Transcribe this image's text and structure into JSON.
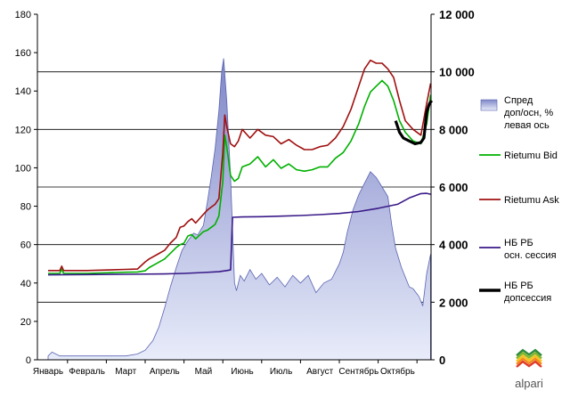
{
  "chart_data": {
    "type": "line",
    "categories": [
      "Январь",
      "Февраль",
      "Март",
      "Апрель",
      "Май",
      "Июнь",
      "Июль",
      "Август",
      "Сентябрь",
      "Октябрь"
    ],
    "left_axis": {
      "ylim": [
        0,
        180
      ],
      "ticks": [
        "0",
        "20",
        "40",
        "60",
        "80",
        "100",
        "120",
        "140",
        "160",
        "180"
      ]
    },
    "right_axis": {
      "ylim": [
        0,
        12000
      ],
      "ticks": [
        "0",
        "2 000",
        "4 000",
        "6 000",
        "8 000",
        "10 000",
        "12 000"
      ]
    },
    "grid": {
      "horizontal_at_right_values": [
        2000,
        4000,
        6000,
        8000,
        10000
      ]
    },
    "series": [
      {
        "name": "Спред доп/осн, % левая ось",
        "axis": "left",
        "style": "area",
        "color": "#9aa3dc",
        "x": [
          0,
          0.1,
          0.3,
          0.5,
          0.8,
          1,
          1.5,
          2,
          2.3,
          2.5,
          2.7,
          2.85,
          3,
          3.15,
          3.3,
          3.45,
          3.6,
          3.75,
          3.85,
          4,
          4.1,
          4.2,
          4.3,
          4.4,
          4.47,
          4.52,
          4.6,
          4.7,
          4.8,
          4.85,
          4.95,
          5.05,
          5.2,
          5.35,
          5.5,
          5.7,
          5.9,
          6.1,
          6.3,
          6.5,
          6.7,
          6.9,
          7.1,
          7.3,
          7.5,
          7.6,
          7.7,
          7.85,
          8,
          8.15,
          8.3,
          8.45,
          8.6,
          8.75,
          8.85,
          8.95,
          9.1,
          9.3,
          9.4,
          9.55,
          9.65,
          9.75,
          9.85
        ],
        "values": [
          2,
          4,
          2,
          2,
          2,
          2,
          2,
          2,
          3,
          5,
          10,
          17,
          27,
          38,
          48,
          57,
          62,
          66,
          65,
          70,
          82,
          95,
          110,
          130,
          150,
          157,
          135,
          95,
          40,
          36,
          44,
          41,
          47,
          42,
          45,
          39,
          43,
          38,
          44,
          40,
          44,
          35,
          40,
          42,
          50,
          56,
          66,
          78,
          86,
          92,
          98,
          95,
          90,
          85,
          70,
          58,
          48,
          38,
          37,
          33,
          28,
          45,
          55
        ]
      },
      {
        "name": "Rietumu Bid",
        "axis": "right",
        "style": "line",
        "color": "#00b000",
        "x": [
          0,
          0.3,
          0.35,
          0.4,
          1,
          2,
          2.3,
          2.5,
          2.6,
          2.8,
          3,
          3.15,
          3.3,
          3.4,
          3.5,
          3.6,
          3.7,
          3.8,
          4,
          4.1,
          4.2,
          4.3,
          4.4,
          4.5,
          4.55,
          4.6,
          4.7,
          4.8,
          4.9,
          5,
          5.2,
          5.4,
          5.6,
          5.8,
          6,
          6.2,
          6.4,
          6.6,
          6.8,
          7,
          7.2,
          7.4,
          7.6,
          7.8,
          8,
          8.15,
          8.3,
          8.45,
          8.6,
          8.75,
          8.9,
          9.05,
          9.2,
          9.4,
          9.6,
          9.75,
          9.85
        ],
        "values": [
          3000,
          3000,
          3150,
          3000,
          3000,
          3040,
          3050,
          3090,
          3200,
          3350,
          3500,
          3700,
          3900,
          4000,
          4050,
          4300,
          4350,
          4200,
          4450,
          4500,
          4600,
          4700,
          5000,
          6200,
          7800,
          7400,
          6400,
          6200,
          6300,
          6700,
          6800,
          7050,
          6700,
          6950,
          6650,
          6800,
          6600,
          6550,
          6600,
          6700,
          6700,
          7000,
          7200,
          7600,
          8200,
          8800,
          9300,
          9500,
          9700,
          9500,
          9000,
          8300,
          7900,
          7600,
          7500,
          8200,
          9200
        ]
      },
      {
        "name": "Rietumu Ask",
        "axis": "right",
        "style": "line",
        "color": "#a01010",
        "x": [
          0,
          0.3,
          0.35,
          0.4,
          1,
          2,
          2.3,
          2.5,
          2.6,
          2.8,
          3,
          3.15,
          3.3,
          3.4,
          3.5,
          3.6,
          3.7,
          3.8,
          4,
          4.1,
          4.2,
          4.3,
          4.4,
          4.5,
          4.55,
          4.6,
          4.7,
          4.8,
          4.9,
          5,
          5.2,
          5.4,
          5.6,
          5.8,
          6,
          6.2,
          6.4,
          6.6,
          6.8,
          7,
          7.2,
          7.4,
          7.6,
          7.8,
          8,
          8.15,
          8.3,
          8.45,
          8.6,
          8.75,
          8.9,
          9.05,
          9.2,
          9.4,
          9.6,
          9.75,
          9.85
        ],
        "values": [
          3100,
          3100,
          3250,
          3100,
          3100,
          3140,
          3150,
          3400,
          3500,
          3650,
          3800,
          4050,
          4250,
          4600,
          4650,
          4800,
          4900,
          4750,
          5050,
          5200,
          5300,
          5400,
          5600,
          7200,
          8500,
          8100,
          7500,
          7400,
          7600,
          8000,
          7700,
          8000,
          7800,
          7750,
          7500,
          7650,
          7450,
          7300,
          7300,
          7400,
          7450,
          7700,
          8100,
          8700,
          9500,
          10100,
          10400,
          10300,
          10300,
          10100,
          9800,
          9000,
          8300,
          8000,
          7800,
          8900,
          9600
        ]
      },
      {
        "name": "НБ РБ осн. сессия",
        "axis": "right",
        "style": "line",
        "color": "#3a1a88",
        "x": [
          0,
          1,
          2,
          3,
          3.5,
          4,
          4.4,
          4.6,
          4.7,
          4.75,
          5,
          5.5,
          6,
          6.5,
          7,
          7.5,
          8,
          8.5,
          9,
          9.3,
          9.6,
          9.75,
          9.85
        ],
        "values": [
          2950,
          2960,
          2970,
          2980,
          3000,
          3030,
          3060,
          3100,
          3120,
          4950,
          4960,
          4970,
          4990,
          5010,
          5040,
          5080,
          5150,
          5260,
          5400,
          5620,
          5770,
          5780,
          5750
        ]
      },
      {
        "name": "НБ РБ допсессия",
        "axis": "right",
        "style": "line",
        "color": "#000000",
        "x": [
          8.95,
          9.05,
          9.15,
          9.3,
          9.45,
          9.6,
          9.68,
          9.75,
          9.82,
          9.88
        ],
        "values": [
          8300,
          7900,
          7700,
          7600,
          7500,
          7550,
          7700,
          8600,
          8900,
          9000
        ]
      }
    ],
    "legend_placement": "right",
    "logo_text": "alpari"
  }
}
